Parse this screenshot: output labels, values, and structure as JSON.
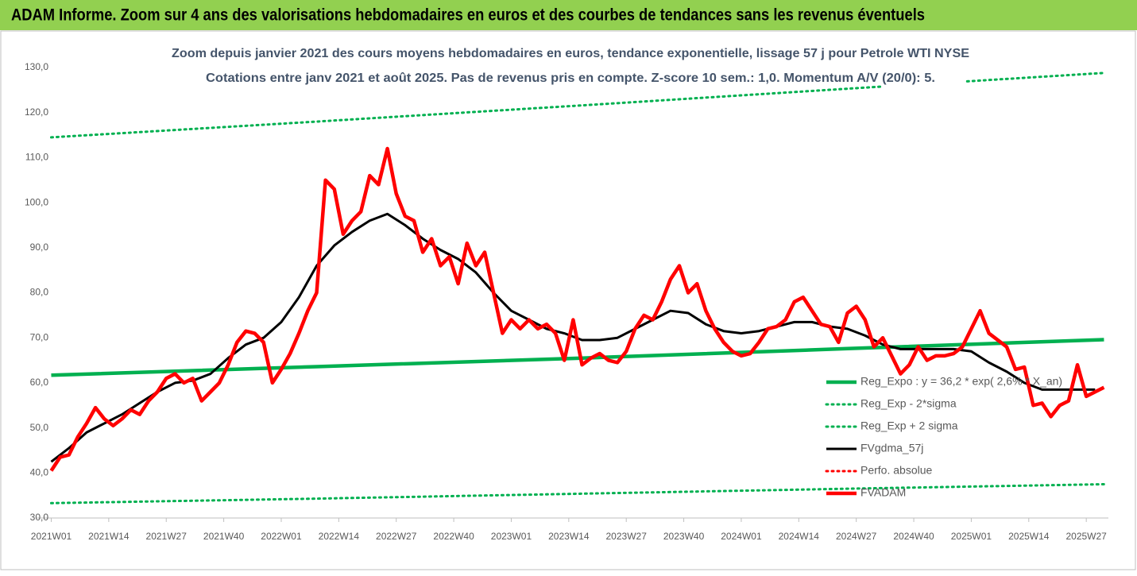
{
  "chart_data": {
    "type": "line",
    "title": "ADAM Informe. Zoom sur 4 ans des valorisations hebdomadaires en euros et des courbes de tendances sans les revenus éventuels",
    "subtitle": [
      "Zoom depuis janvier 2021 des cours moyens hebdomadaires en euros, tendance exponentielle, lissage 57 j pour Petrole WTI NYSE",
      "Cotations entre janv 2021 et août 2025.  Pas de revenus pris en compte. Z-score 10 sem.: 1,0. Momentum A/V (20/0): 5."
    ],
    "xlim": [
      -3.5,
      239
    ],
    "xticks": [
      {
        "value": 0,
        "label": "2021W01"
      },
      {
        "value": 13,
        "label": "2021W14"
      },
      {
        "value": 26,
        "label": "2021W27"
      },
      {
        "value": 39,
        "label": "2021W40"
      },
      {
        "value": 52,
        "label": "2022W01"
      },
      {
        "value": 65,
        "label": "2022W14"
      },
      {
        "value": 78,
        "label": "2022W27"
      },
      {
        "value": 91,
        "label": "2022W40"
      },
      {
        "value": 104,
        "label": "2023W01"
      },
      {
        "value": 117,
        "label": "2023W14"
      },
      {
        "value": 130,
        "label": "2023W27"
      },
      {
        "value": 143,
        "label": "2023W40"
      },
      {
        "value": 156,
        "label": "2024W01"
      },
      {
        "value": 169,
        "label": "2024W14"
      },
      {
        "value": 182,
        "label": "2024W27"
      },
      {
        "value": 195,
        "label": "2024W40"
      },
      {
        "value": 208,
        "label": "2025W01"
      },
      {
        "value": 221,
        "label": "2025W14"
      },
      {
        "value": 234,
        "label": "2025W27"
      }
    ],
    "ylim": [
      30,
      130
    ],
    "yticks": [
      {
        "value": 30,
        "label": "30,0"
      },
      {
        "value": 40,
        "label": "40,0"
      },
      {
        "value": 50,
        "label": "50,0"
      },
      {
        "value": 60,
        "label": "60,0"
      },
      {
        "value": 70,
        "label": "70,0"
      },
      {
        "value": 80,
        "label": "80,0"
      },
      {
        "value": 90,
        "label": "90,0"
      },
      {
        "value": 100,
        "label": "100,0"
      },
      {
        "value": 110,
        "label": "110,0"
      },
      {
        "value": 120,
        "label": "120,0"
      },
      {
        "value": 130,
        "label": "130,0"
      }
    ],
    "legend": "right",
    "series": [
      {
        "name": "Reg_Expo : y = 36,2 * exp( 2,6% * X_an)",
        "color": "#00b050",
        "style": "solid",
        "x": [
          0,
          60,
          120,
          180,
          238
        ],
        "values": [
          61.7,
          63.6,
          65.5,
          67.6,
          69.6
        ]
      },
      {
        "name": "Reg_Exp - 2*sigma",
        "color": "#00b050",
        "style": "dotted",
        "x": [
          0,
          60,
          120,
          180,
          238
        ],
        "values": [
          33.3,
          34.3,
          35.4,
          36.5,
          37.5
        ]
      },
      {
        "name": "Reg_Exp + 2 sigma",
        "color": "#00b050",
        "style": "dotted",
        "x": [
          0,
          60,
          120,
          180,
          238
        ],
        "values": [
          114.5,
          118.0,
          121.6,
          125.3,
          128.8
        ]
      },
      {
        "name": "FVgdma_57j",
        "color": "#000000",
        "style": "solid",
        "x": [
          0,
          4,
          8,
          12,
          16,
          20,
          24,
          28,
          32,
          36,
          40,
          44,
          48,
          52,
          56,
          60,
          64,
          68,
          72,
          76,
          80,
          84,
          88,
          92,
          96,
          100,
          104,
          108,
          112,
          116,
          120,
          124,
          128,
          132,
          136,
          140,
          144,
          148,
          152,
          156,
          160,
          164,
          168,
          172,
          176,
          180,
          184,
          188,
          192,
          196,
          200,
          204,
          208,
          212,
          216,
          220,
          224,
          228,
          232,
          236
        ],
        "values": [
          42.5,
          45.5,
          49,
          51,
          53,
          55.5,
          58,
          60,
          60.5,
          62,
          65.5,
          68.5,
          70,
          73.5,
          79,
          86,
          90.5,
          93.5,
          96,
          97.5,
          95,
          92,
          89.5,
          87.5,
          84.5,
          80,
          76,
          74,
          72,
          71,
          69.5,
          69.5,
          70,
          72,
          74,
          76,
          75.5,
          73,
          71.5,
          71,
          71.5,
          72.5,
          73.5,
          73.5,
          72.5,
          72,
          70.5,
          68.5,
          67.5,
          67.5,
          67.5,
          67.5,
          67,
          64.5,
          62.5,
          60,
          58.5,
          58.5,
          58.5,
          58.5
        ]
      },
      {
        "name": "Perfo. absolue",
        "color": "#ff0000",
        "style": "dotted",
        "x": [],
        "values": []
      },
      {
        "name": "FVADAM",
        "color": "#ff0000",
        "style": "solid",
        "x": [
          0,
          2,
          4,
          6,
          8,
          10,
          12,
          14,
          16,
          18,
          20,
          22,
          24,
          26,
          28,
          30,
          32,
          34,
          36,
          38,
          40,
          42,
          44,
          46,
          48,
          50,
          52,
          54,
          56,
          58,
          60,
          62,
          64,
          66,
          68,
          70,
          72,
          74,
          76,
          78,
          80,
          82,
          84,
          86,
          88,
          90,
          92,
          94,
          96,
          98,
          100,
          102,
          104,
          106,
          108,
          110,
          112,
          114,
          116,
          118,
          120,
          122,
          124,
          126,
          128,
          130,
          132,
          134,
          136,
          138,
          140,
          142,
          144,
          146,
          148,
          150,
          152,
          154,
          156,
          158,
          160,
          162,
          164,
          166,
          168,
          170,
          172,
          174,
          176,
          178,
          180,
          182,
          184,
          186,
          188,
          190,
          192,
          194,
          196,
          198,
          200,
          202,
          204,
          206,
          208,
          210,
          212,
          214,
          216,
          218,
          220,
          222,
          224,
          226,
          228,
          230,
          232,
          234,
          236,
          238
        ],
        "values": [
          40.5,
          43.5,
          44,
          48,
          51,
          54.5,
          52,
          50.5,
          52,
          54,
          53,
          56,
          58,
          61,
          62,
          60,
          61,
          56,
          58,
          60,
          64,
          69,
          71.5,
          71,
          69,
          60,
          63,
          66.5,
          71,
          76,
          80,
          105,
          103,
          93,
          96,
          98,
          106,
          104,
          112,
          102,
          97,
          96,
          89,
          92,
          86,
          88,
          82,
          91,
          86,
          89,
          80,
          71,
          74,
          72,
          74,
          72,
          73,
          71,
          65,
          74,
          64,
          65.5,
          66.5,
          65,
          64.5,
          67,
          72,
          75,
          74,
          78,
          83,
          86,
          80,
          82,
          76,
          72,
          69,
          67,
          66,
          66.5,
          69,
          72,
          72.5,
          74,
          78,
          79,
          76,
          73,
          72.5,
          69,
          75.5,
          77,
          74,
          68,
          70,
          66,
          62,
          64,
          68,
          65,
          66,
          66,
          66.5,
          68,
          72,
          76,
          71,
          69.5,
          68,
          63,
          63.5,
          55,
          55.5,
          52.5,
          55,
          56,
          64,
          57,
          58,
          59
        ]
      }
    ]
  }
}
